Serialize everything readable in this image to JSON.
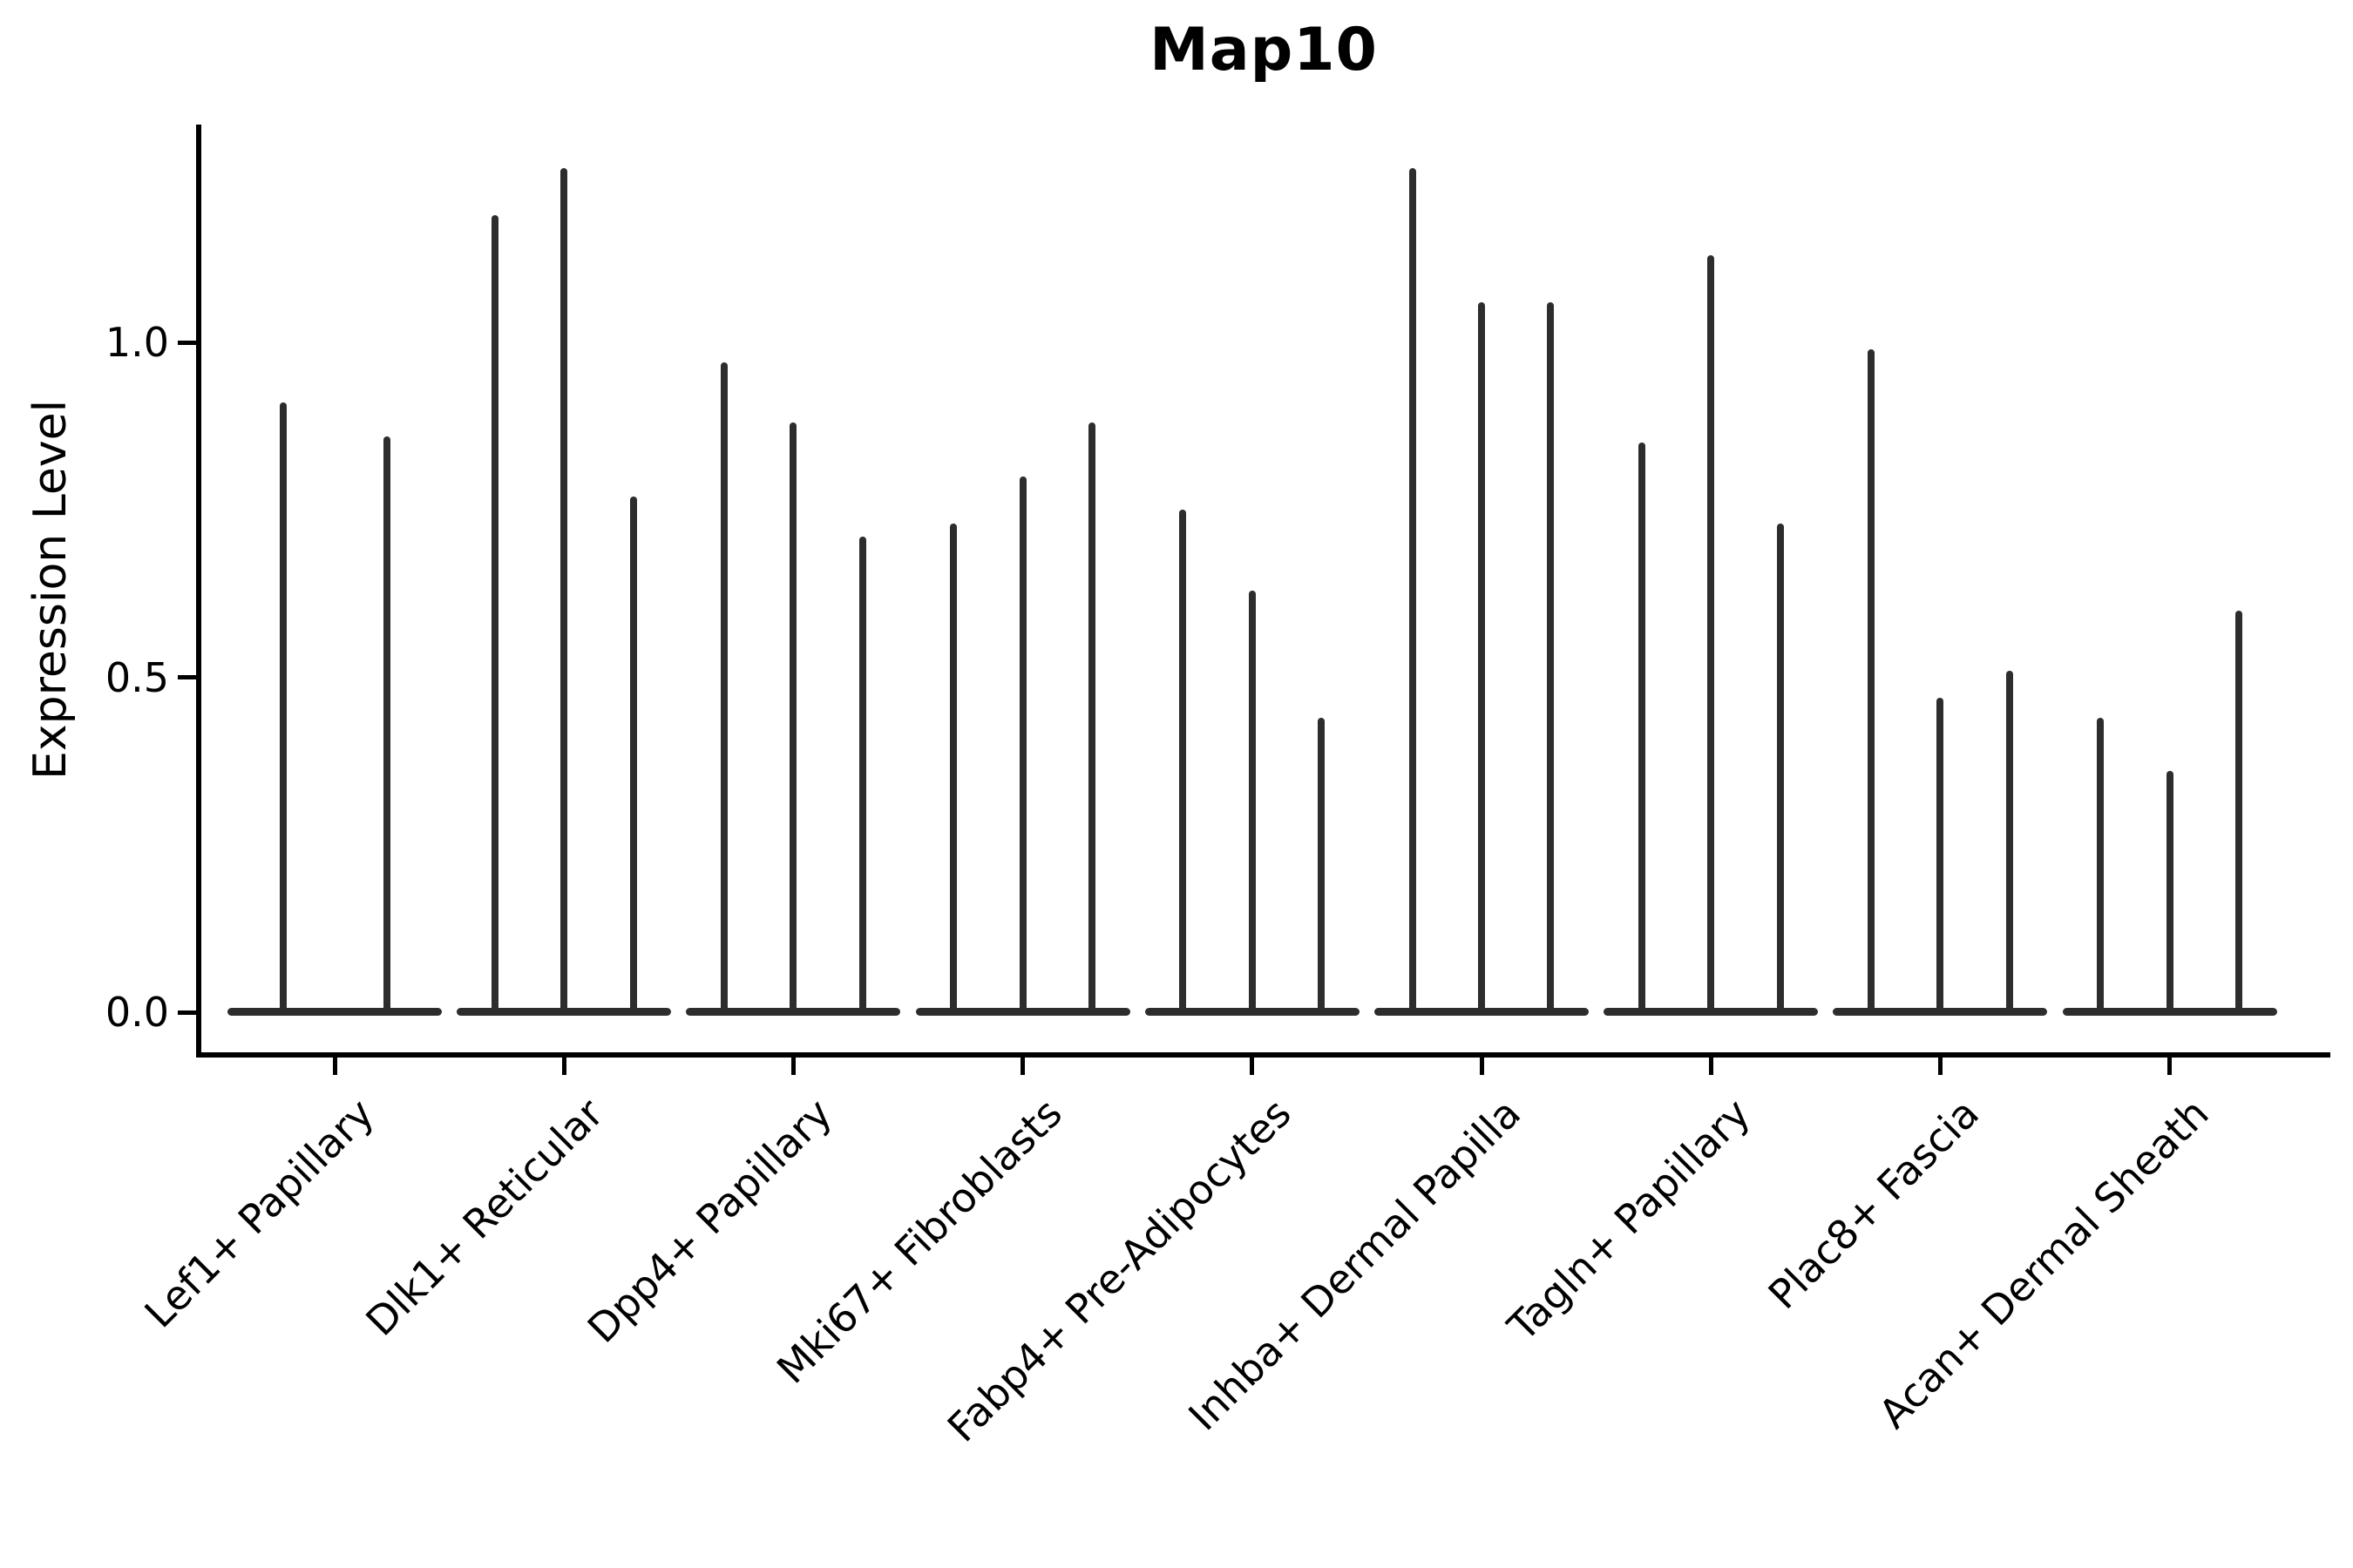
{
  "title": "Map10",
  "chart_data": {
    "type": "violin",
    "title": "Map10",
    "xlabel": "",
    "ylabel": "Expression Level",
    "ylim": [
      -0.06,
      1.32
    ],
    "grid": false,
    "legend": "none",
    "violin_color": "#2d2d2d",
    "axis_color": "#000000",
    "yticks": [
      {
        "value": 0.0,
        "label": "0.0"
      },
      {
        "value": 0.5,
        "label": "0.5"
      },
      {
        "value": 1.0,
        "label": "1.0"
      }
    ],
    "categories": [
      "Lef1+ Papillary",
      "Dlk1+ Reticular",
      "Dpp4+ Papillary",
      "Mki67+ Fibroblasts",
      "Fabp4+ Pre-Adipocytes",
      "Inhba+ Dermal Papilla",
      "Tagln+ Papillary",
      "Plac8+ Fascia",
      "Acan+ Dermal Sheath"
    ],
    "series": [
      {
        "category": "Lef1+ Papillary",
        "violin_max_values": [
          0.91,
          0.86
        ]
      },
      {
        "category": "Dlk1+ Reticular",
        "violin_max_values": [
          1.19,
          1.26,
          0.77
        ]
      },
      {
        "category": "Dpp4+ Papillary",
        "violin_max_values": [
          0.97,
          0.88,
          0.71
        ]
      },
      {
        "category": "Mki67+ Fibroblasts",
        "violin_max_values": [
          0.73,
          0.8,
          0.88
        ]
      },
      {
        "category": "Fabp4+ Pre-Adipocytes",
        "violin_max_values": [
          0.75,
          0.63,
          0.44
        ]
      },
      {
        "category": "Inhba+ Dermal Papilla",
        "violin_max_values": [
          1.26,
          1.06,
          1.06
        ]
      },
      {
        "category": "Tagln+ Papillary",
        "violin_max_values": [
          0.85,
          1.13,
          0.73
        ]
      },
      {
        "category": "Plac8+ Fascia",
        "violin_max_values": [
          0.99,
          0.47,
          0.51
        ]
      },
      {
        "category": "Acan+ Dermal Sheath",
        "violin_max_values": [
          0.44,
          0.36,
          0.6
        ]
      }
    ]
  }
}
